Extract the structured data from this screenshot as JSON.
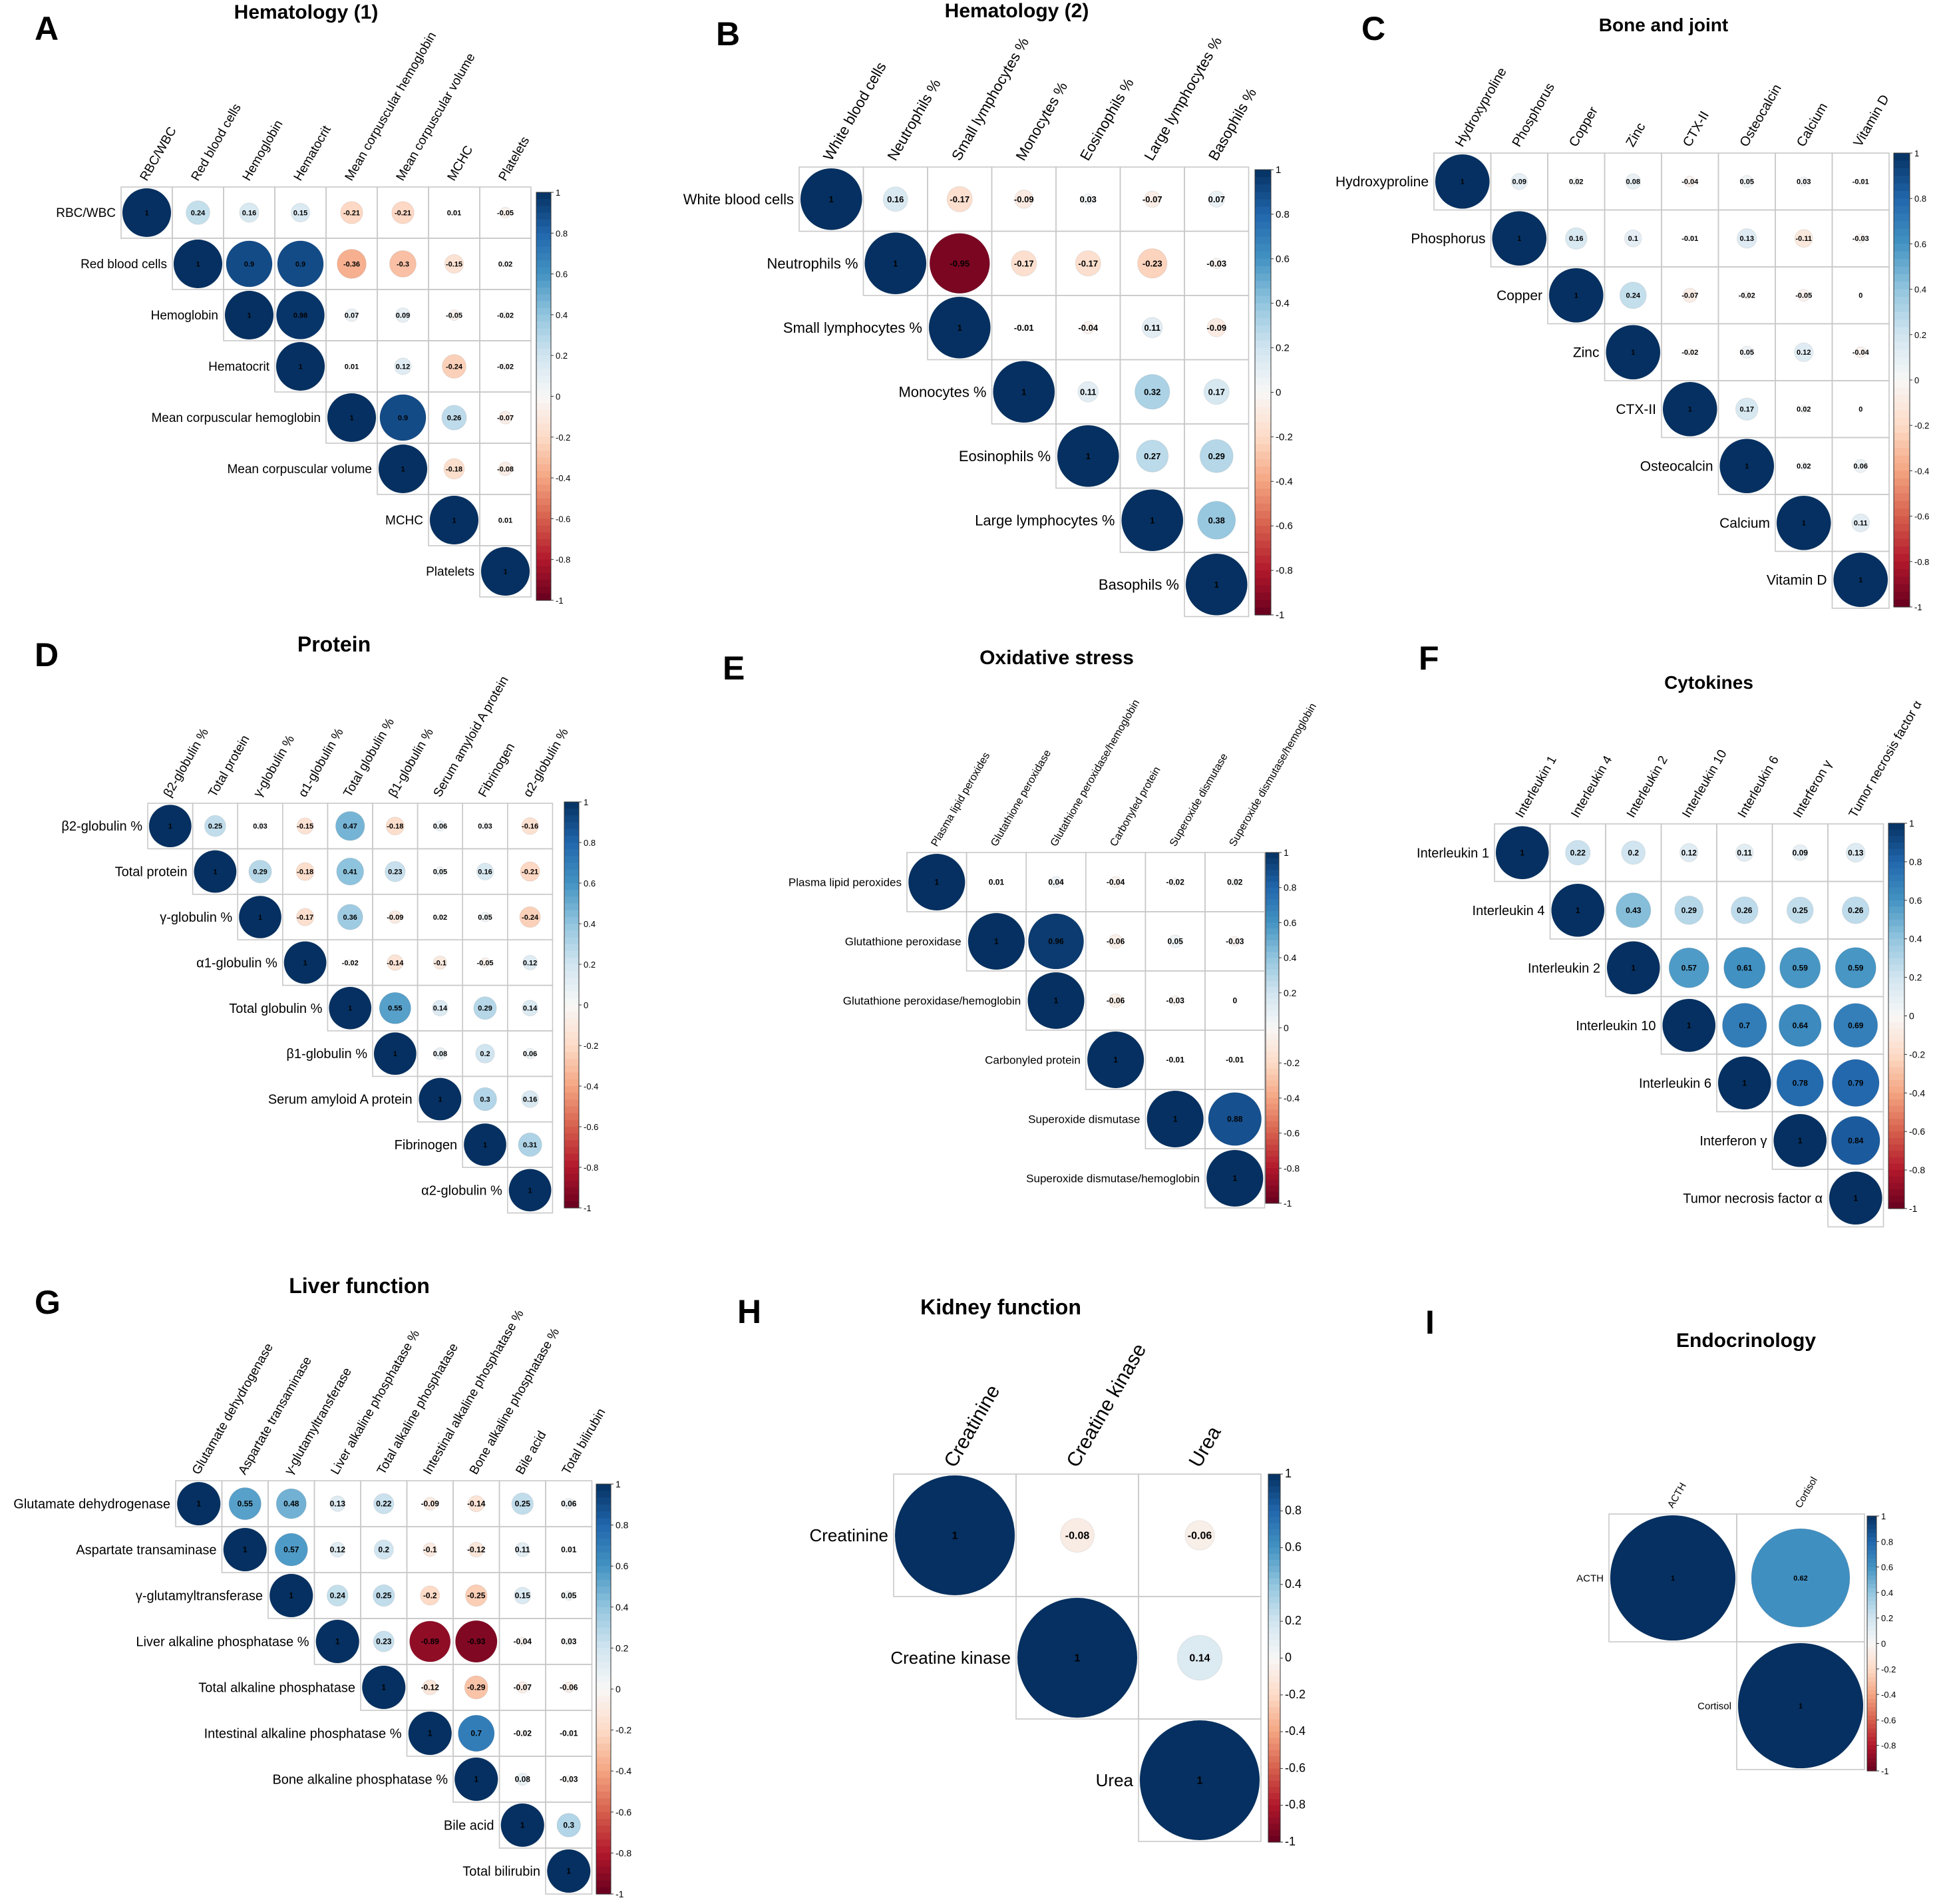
{
  "figure": "Correlation matrices",
  "colorbar": {
    "ticks": [
      "1",
      "0.8",
      "0.6",
      "0.4",
      "0.2",
      "0",
      "-0.2",
      "-0.4",
      "-0.6",
      "-0.8",
      "-1"
    ],
    "high_color": "#053061",
    "mid_color": "#f7f7f7",
    "low_color": "#67001f"
  },
  "chart_data": [
    {
      "type": "heatmap",
      "panel": "A",
      "title": "Hematology (1)",
      "variables": [
        "RBC/WBC",
        "Red blood cells",
        "Hemoglobin",
        "Hematocrit",
        "Mean corpuscular hemoglobin",
        "Mean corpuscular volume",
        "MCHC",
        "Platelets"
      ],
      "upper_triangle": [
        [
          "1",
          "0.24",
          "0.16",
          "0.15",
          "-0.21",
          "-0.21",
          "0.01",
          "-0.05"
        ],
        [
          "1",
          "0.9",
          "0.9",
          "-0.36",
          "-0.3",
          "-0.15",
          "0.02"
        ],
        [
          "1",
          "0.98",
          "0.07",
          "0.09",
          "-0.05",
          "-0.02"
        ],
        [
          "1",
          "0.01",
          "0.12",
          "-0.24",
          "-0.02"
        ],
        [
          "1",
          "0.9",
          "0.26",
          "-0.07"
        ],
        [
          "1",
          "-0.18",
          "-0.08"
        ],
        [
          "1",
          "0.01"
        ],
        [
          "1"
        ]
      ]
    },
    {
      "type": "heatmap",
      "panel": "B",
      "title": "Hematology (2)",
      "variables": [
        "White blood cells",
        "Neutrophils %",
        "Small lymphocytes %",
        "Monocytes %",
        "Eosinophils %",
        "Large lymphocytes %",
        "Basophils %"
      ],
      "upper_triangle": [
        [
          "1",
          "0.16",
          "-0.17",
          "-0.09",
          "0.03",
          "-0.07",
          "0.07"
        ],
        [
          "1",
          "-0.95",
          "-0.17",
          "-0.17",
          "-0.23",
          "-0.03"
        ],
        [
          "1",
          "-0.01",
          "-0.04",
          "0.11",
          "-0.09"
        ],
        [
          "1",
          "0.11",
          "0.32",
          "0.17"
        ],
        [
          "1",
          "0.27",
          "0.29"
        ],
        [
          "1",
          "0.38"
        ],
        [
          "1"
        ]
      ]
    },
    {
      "type": "heatmap",
      "panel": "C",
      "title": "Bone and joint",
      "variables": [
        "Hydroxyproline",
        "Phosphorus",
        "Copper",
        "Zinc",
        "CTX-II",
        "Osteocalcin",
        "Calcium",
        "Vitamin D"
      ],
      "upper_triangle": [
        [
          "1",
          "0.09",
          "0.02",
          "0.08",
          "-0.04",
          "0.05",
          "0.03",
          "-0.01"
        ],
        [
          "1",
          "0.16",
          "0.1",
          "-0.01",
          "0.13",
          "-0.11",
          "-0.03"
        ],
        [
          "1",
          "0.24",
          "-0.07",
          "-0.02",
          "-0.05",
          "0"
        ],
        [
          "1",
          "-0.02",
          "0.05",
          "0.12",
          "-0.04"
        ],
        [
          "1",
          "0.17",
          "0.02",
          "0"
        ],
        [
          "1",
          "0.02",
          "0.06"
        ],
        [
          "1",
          "0.11"
        ],
        [
          "1"
        ]
      ]
    },
    {
      "type": "heatmap",
      "panel": "D",
      "title": "Protein",
      "variables": [
        "β2-globulin %",
        "Total protein",
        "γ-globulin %",
        "α1-globulin %",
        "Total globulin %",
        "β1-globulin %",
        "Serum amyloid A protein",
        "Fibrinogen",
        "α2-globulin %"
      ],
      "upper_triangle": [
        [
          "1",
          "0.25",
          "0.03",
          "-0.15",
          "0.47",
          "-0.18",
          "0.06",
          "0.03",
          "-0.16"
        ],
        [
          "1",
          "0.29",
          "-0.18",
          "0.41",
          "0.23",
          "0.05",
          "0.16",
          "-0.21"
        ],
        [
          "1",
          "-0.17",
          "0.36",
          "-0.09",
          "0.02",
          "0.05",
          "-0.24"
        ],
        [
          "1",
          "-0.02",
          "-0.14",
          "-0.1",
          "-0.05",
          "0.12"
        ],
        [
          "1",
          "0.55",
          "0.14",
          "0.29",
          "0.14"
        ],
        [
          "1",
          "0.08",
          "0.2",
          "0.06"
        ],
        [
          "1",
          "0.3",
          "0.16"
        ],
        [
          "1",
          "0.31"
        ],
        [
          "1"
        ]
      ]
    },
    {
      "type": "heatmap",
      "panel": "E",
      "title": "Oxidative stress",
      "variables": [
        "Plasma lipid peroxides",
        "Glutathione peroxidase",
        "Glutathione peroxidase/hemoglobin",
        "Carbonyled protein",
        "Superoxide dismutase",
        "Superoxide dismutase/hemoglobin"
      ],
      "upper_triangle": [
        [
          "1",
          "0.01",
          "0.04",
          "-0.04",
          "-0.02",
          "0.02"
        ],
        [
          "1",
          "0.96",
          "-0.06",
          "0.05",
          "-0.03"
        ],
        [
          "1",
          "-0.06",
          "-0.03",
          "0"
        ],
        [
          "1",
          "-0.01",
          "-0.01"
        ],
        [
          "1",
          "0.88"
        ],
        [
          "1"
        ]
      ]
    },
    {
      "type": "heatmap",
      "panel": "F",
      "title": "Cytokines",
      "variables": [
        "Interleukin 1",
        "Interleukin 4",
        "Interleukin 2",
        "Interleukin 10",
        "Interleukin 6",
        "Interferon γ",
        "Tumor necrosis factor α"
      ],
      "upper_triangle": [
        [
          "1",
          "0.22",
          "0.2",
          "0.12",
          "0.11",
          "0.09",
          "0.13"
        ],
        [
          "1",
          "0.43",
          "0.29",
          "0.26",
          "0.25",
          "0.26"
        ],
        [
          "1",
          "0.57",
          "0.61",
          "0.59",
          "0.59"
        ],
        [
          "1",
          "0.7",
          "0.64",
          "0.69"
        ],
        [
          "1",
          "0.78",
          "0.79"
        ],
        [
          "1",
          "0.84"
        ],
        [
          "1"
        ]
      ]
    },
    {
      "type": "heatmap",
      "panel": "G",
      "title": "Liver function",
      "variables": [
        "Glutamate dehydrogenase",
        "Aspartate transaminase",
        "γ-glutamyltransferase",
        "Liver alkaline phosphatase %",
        "Total alkaline phosphatase",
        "Intestinal alkaline phosphatase %",
        "Bone alkaline phosphatase %",
        "Bile acid",
        "Total bilirubin"
      ],
      "upper_triangle": [
        [
          "1",
          "0.55",
          "0.48",
          "0.13",
          "0.22",
          "-0.09",
          "-0.14",
          "0.25",
          "0.06"
        ],
        [
          "1",
          "0.57",
          "0.12",
          "0.2",
          "-0.1",
          "-0.12",
          "0.11",
          "0.01"
        ],
        [
          "1",
          "0.24",
          "0.25",
          "-0.2",
          "-0.25",
          "0.15",
          "0.05"
        ],
        [
          "1",
          "0.23",
          "-0.89",
          "-0.93",
          "-0.04",
          "0.03"
        ],
        [
          "1",
          "-0.12",
          "-0.29",
          "-0.07",
          "-0.06"
        ],
        [
          "1",
          "0.7",
          "-0.02",
          "-0.01"
        ],
        [
          "1",
          "0.08",
          "-0.03"
        ],
        [
          "1",
          "0.3"
        ],
        [
          "1"
        ]
      ]
    },
    {
      "type": "heatmap",
      "panel": "H",
      "title": "Kidney function",
      "variables": [
        "Creatinine",
        "Creatine kinase",
        "Urea"
      ],
      "upper_triangle": [
        [
          "1",
          "-0.08",
          "-0.06"
        ],
        [
          "1",
          "0.14"
        ],
        [
          "1"
        ]
      ]
    },
    {
      "type": "heatmap",
      "panel": "I",
      "title": "Endocrinology",
      "variables": [
        "ACTH",
        "Cortisol"
      ],
      "upper_triangle": [
        [
          "1",
          "0.62"
        ],
        [
          "1"
        ]
      ]
    }
  ]
}
